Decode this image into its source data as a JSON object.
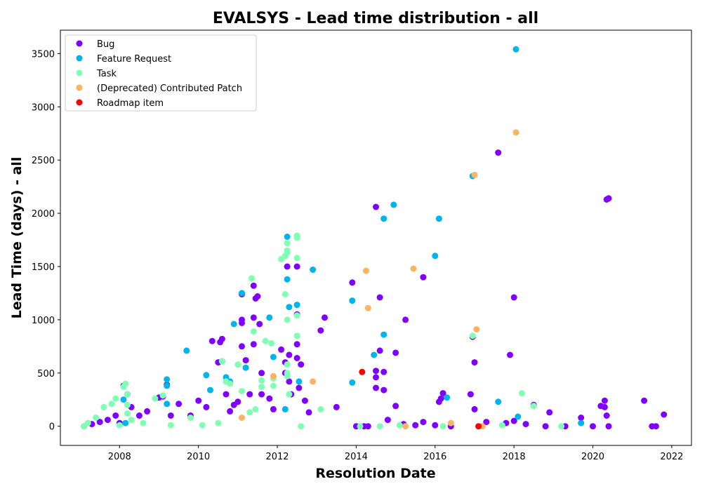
{
  "chart_data": {
    "type": "scatter",
    "title": "EVALSYS - Lead time distribution - all",
    "xlabel": "Resolution Date",
    "ylabel": "Lead Time (days) - all",
    "xlim": [
      2006.5,
      2022.5
    ],
    "ylim": [
      -180,
      3720
    ],
    "x_ticks": [
      2008,
      2010,
      2012,
      2014,
      2016,
      2018,
      2020,
      2022
    ],
    "y_ticks": [
      0,
      500,
      1000,
      1500,
      2000,
      2500,
      3000,
      3500
    ],
    "grid": false,
    "legend_position": "top-left",
    "series": [
      {
        "name": "Bug",
        "color": "#8000ff",
        "points": [
          [
            2007.1,
            0
          ],
          [
            2007.3,
            20
          ],
          [
            2007.5,
            40
          ],
          [
            2007.7,
            60
          ],
          [
            2007.9,
            100
          ],
          [
            2008.0,
            30
          ],
          [
            2008.1,
            380
          ],
          [
            2008.2,
            300
          ],
          [
            2008.3,
            180
          ],
          [
            2008.5,
            100
          ],
          [
            2008.7,
            140
          ],
          [
            2009.0,
            270
          ],
          [
            2009.1,
            280
          ],
          [
            2009.2,
            390
          ],
          [
            2009.3,
            100
          ],
          [
            2009.5,
            210
          ],
          [
            2009.8,
            100
          ],
          [
            2010.0,
            240
          ],
          [
            2010.2,
            180
          ],
          [
            2010.35,
            800
          ],
          [
            2010.55,
            790
          ],
          [
            2010.6,
            820
          ],
          [
            2010.5,
            600
          ],
          [
            2010.7,
            300
          ],
          [
            2010.8,
            140
          ],
          [
            2010.9,
            200
          ],
          [
            2011.0,
            230
          ],
          [
            2011.1,
            1240
          ],
          [
            2011.1,
            1000
          ],
          [
            2011.1,
            970
          ],
          [
            2011.1,
            750
          ],
          [
            2011.2,
            620
          ],
          [
            2011.3,
            300
          ],
          [
            2011.4,
            1020
          ],
          [
            2011.4,
            1320
          ],
          [
            2011.4,
            770
          ],
          [
            2011.45,
            1200
          ],
          [
            2011.5,
            1220
          ],
          [
            2011.55,
            960
          ],
          [
            2011.6,
            500
          ],
          [
            2011.6,
            300
          ],
          [
            2011.8,
            260
          ],
          [
            2011.9,
            160
          ],
          [
            2012.1,
            720
          ],
          [
            2012.2,
            600
          ],
          [
            2012.2,
            500
          ],
          [
            2012.25,
            1500
          ],
          [
            2012.3,
            670
          ],
          [
            2012.3,
            420
          ],
          [
            2012.35,
            300
          ],
          [
            2012.5,
            1500
          ],
          [
            2012.5,
            1050
          ],
          [
            2012.5,
            770
          ],
          [
            2012.5,
            640
          ],
          [
            2012.55,
            360
          ],
          [
            2012.6,
            580
          ],
          [
            2012.7,
            240
          ],
          [
            2012.8,
            130
          ],
          [
            2013.1,
            900
          ],
          [
            2013.2,
            1020
          ],
          [
            2013.5,
            180
          ],
          [
            2013.9,
            1350
          ],
          [
            2014.0,
            0
          ],
          [
            2014.2,
            0
          ],
          [
            2014.3,
            0
          ],
          [
            2014.5,
            2060
          ],
          [
            2014.5,
            520
          ],
          [
            2014.5,
            460
          ],
          [
            2014.5,
            360
          ],
          [
            2014.6,
            1210
          ],
          [
            2014.6,
            710
          ],
          [
            2014.7,
            510
          ],
          [
            2014.7,
            340
          ],
          [
            2014.8,
            60
          ],
          [
            2015.0,
            690
          ],
          [
            2015.0,
            190
          ],
          [
            2015.2,
            20
          ],
          [
            2015.25,
            1000
          ],
          [
            2015.5,
            10
          ],
          [
            2015.7,
            1400
          ],
          [
            2015.7,
            40
          ],
          [
            2016.0,
            10
          ],
          [
            2016.1,
            230
          ],
          [
            2016.15,
            260
          ],
          [
            2016.2,
            310
          ],
          [
            2016.4,
            0
          ],
          [
            2016.9,
            300
          ],
          [
            2016.95,
            840
          ],
          [
            2017.0,
            600
          ],
          [
            2017.0,
            160
          ],
          [
            2017.3,
            40
          ],
          [
            2017.6,
            2570
          ],
          [
            2017.8,
            30
          ],
          [
            2017.9,
            670
          ],
          [
            2018.0,
            1210
          ],
          [
            2018.0,
            50
          ],
          [
            2018.3,
            20
          ],
          [
            2018.5,
            200
          ],
          [
            2018.8,
            0
          ],
          [
            2018.9,
            130
          ],
          [
            2019.3,
            0
          ],
          [
            2019.7,
            80
          ],
          [
            2020.0,
            0
          ],
          [
            2020.2,
            190
          ],
          [
            2020.3,
            240
          ],
          [
            2020.3,
            180
          ],
          [
            2020.35,
            100
          ],
          [
            2020.35,
            2130
          ],
          [
            2020.4,
            2140
          ],
          [
            2020.4,
            0
          ],
          [
            2021.3,
            240
          ],
          [
            2021.5,
            0
          ],
          [
            2021.6,
            0
          ],
          [
            2021.8,
            110
          ]
        ]
      },
      {
        "name": "Feature Request",
        "color": "#00b5eb",
        "points": [
          [
            2008.1,
            250
          ],
          [
            2008.15,
            30
          ],
          [
            2009.2,
            440
          ],
          [
            2009.2,
            380
          ],
          [
            2009.2,
            210
          ],
          [
            2009.7,
            710
          ],
          [
            2010.2,
            480
          ],
          [
            2010.3,
            340
          ],
          [
            2010.6,
            610
          ],
          [
            2010.7,
            460
          ],
          [
            2010.8,
            420
          ],
          [
            2010.9,
            960
          ],
          [
            2011.1,
            1250
          ],
          [
            2011.2,
            550
          ],
          [
            2011.8,
            1020
          ],
          [
            2011.9,
            650
          ],
          [
            2012.2,
            160
          ],
          [
            2012.25,
            1780
          ],
          [
            2012.25,
            1380
          ],
          [
            2012.3,
            1120
          ],
          [
            2012.5,
            1140
          ],
          [
            2012.55,
            420
          ],
          [
            2012.9,
            1470
          ],
          [
            2013.9,
            1180
          ],
          [
            2013.9,
            410
          ],
          [
            2014.45,
            670
          ],
          [
            2014.7,
            1950
          ],
          [
            2014.7,
            860
          ],
          [
            2014.95,
            2080
          ],
          [
            2016.0,
            1600
          ],
          [
            2016.1,
            1950
          ],
          [
            2016.3,
            270
          ],
          [
            2016.95,
            2350
          ],
          [
            2017.6,
            230
          ],
          [
            2018.05,
            3540
          ],
          [
            2018.1,
            90
          ],
          [
            2019.7,
            30
          ]
        ]
      },
      {
        "name": "Task",
        "color": "#80ffb4",
        "points": [
          [
            2007.1,
            0
          ],
          [
            2007.2,
            30
          ],
          [
            2007.4,
            80
          ],
          [
            2007.6,
            180
          ],
          [
            2007.8,
            210
          ],
          [
            2007.9,
            260
          ],
          [
            2008.0,
            10
          ],
          [
            2008.1,
            370
          ],
          [
            2008.15,
            400
          ],
          [
            2008.2,
            300
          ],
          [
            2008.2,
            200
          ],
          [
            2008.2,
            120
          ],
          [
            2008.3,
            60
          ],
          [
            2008.6,
            30
          ],
          [
            2008.9,
            260
          ],
          [
            2009.1,
            290
          ],
          [
            2009.3,
            10
          ],
          [
            2009.8,
            80
          ],
          [
            2010.1,
            10
          ],
          [
            2010.5,
            30
          ],
          [
            2010.6,
            610
          ],
          [
            2010.7,
            420
          ],
          [
            2010.8,
            400
          ],
          [
            2011.0,
            580
          ],
          [
            2011.1,
            330
          ],
          [
            2011.3,
            130
          ],
          [
            2011.35,
            1390
          ],
          [
            2011.4,
            890
          ],
          [
            2011.45,
            160
          ],
          [
            2011.6,
            430
          ],
          [
            2011.6,
            370
          ],
          [
            2011.7,
            800
          ],
          [
            2011.85,
            780
          ],
          [
            2011.9,
            450
          ],
          [
            2011.9,
            380
          ],
          [
            2012.1,
            1570
          ],
          [
            2012.2,
            1600
          ],
          [
            2012.2,
            1240
          ],
          [
            2012.25,
            1720
          ],
          [
            2012.25,
            1650
          ],
          [
            2012.25,
            1630
          ],
          [
            2012.25,
            1000
          ],
          [
            2012.25,
            580
          ],
          [
            2012.25,
            500
          ],
          [
            2012.25,
            470
          ],
          [
            2012.3,
            300
          ],
          [
            2012.5,
            1790
          ],
          [
            2012.5,
            1770
          ],
          [
            2012.5,
            1580
          ],
          [
            2012.5,
            1040
          ],
          [
            2012.5,
            850
          ],
          [
            2012.6,
            0
          ],
          [
            2013.1,
            160
          ],
          [
            2014.1,
            0
          ],
          [
            2014.6,
            0
          ],
          [
            2015.1,
            10
          ],
          [
            2016.2,
            0
          ],
          [
            2016.95,
            850
          ],
          [
            2017.7,
            10
          ],
          [
            2018.2,
            310
          ],
          [
            2018.5,
            190
          ],
          [
            2019.2,
            0
          ]
        ]
      },
      {
        "name": "(Deprecated) Contributed Patch",
        "color": "#ffb360",
        "points": [
          [
            2011.1,
            80
          ],
          [
            2011.9,
            470
          ],
          [
            2012.9,
            420
          ],
          [
            2014.25,
            1460
          ],
          [
            2014.3,
            1110
          ],
          [
            2015.25,
            0
          ],
          [
            2015.45,
            1480
          ],
          [
            2016.4,
            30
          ],
          [
            2017.0,
            2360
          ],
          [
            2017.05,
            910
          ],
          [
            2017.2,
            0
          ],
          [
            2018.05,
            2760
          ]
        ]
      },
      {
        "name": "Roadmap item",
        "color": "#ff0000",
        "points": [
          [
            2014.15,
            510
          ],
          [
            2017.1,
            0
          ]
        ]
      }
    ]
  }
}
